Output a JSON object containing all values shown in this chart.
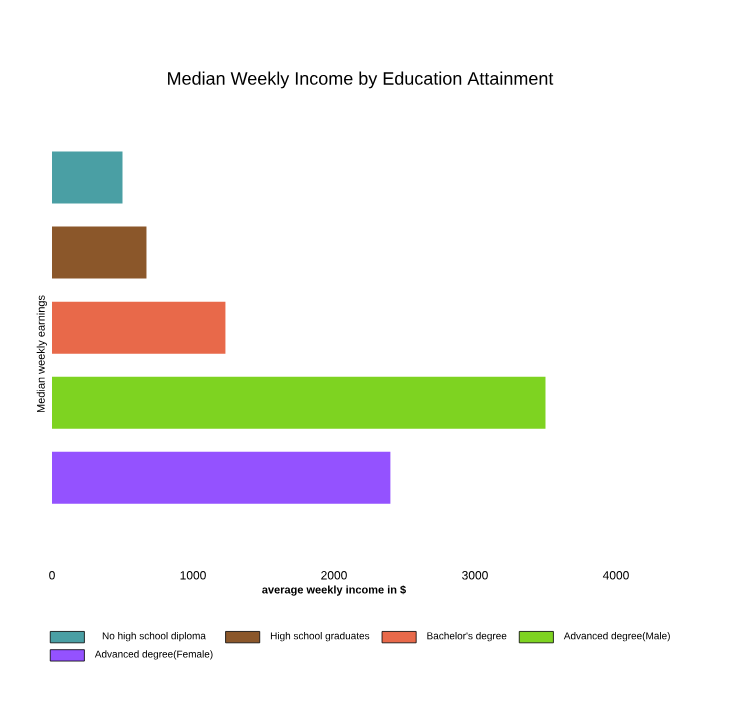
{
  "chart_data": {
    "type": "bar",
    "orientation": "horizontal",
    "stacked": true,
    "title": "Median Weekly Income by Education Attainment",
    "xlabel": "average weekly income in $",
    "ylabel": "Median weekly earnings",
    "categories": [
      null,
      null,
      null,
      null,
      null
    ],
    "series": [
      {
        "name": "No high school diploma",
        "color": "#4a9fa4",
        "values": [
          500,
          null,
          null,
          null,
          null
        ]
      },
      {
        "name": "High school graduates",
        "color": "#8b572a",
        "values": [
          null,
          670,
          null,
          null,
          null
        ]
      },
      {
        "name": "Bachelor's degree",
        "color": "#e8694a",
        "values": [
          null,
          null,
          1230,
          null,
          null
        ]
      },
      {
        "name": "Advanced degree(Male)",
        "color": "#7ed321",
        "values": [
          null,
          null,
          null,
          3500,
          null
        ]
      },
      {
        "name": "Advanced degree(Female)",
        "color": "#9452ff",
        "values": [
          null,
          null,
          null,
          null,
          2400
        ]
      }
    ],
    "xlim": [
      0,
      4000
    ],
    "xticks": [
      0,
      1000,
      2000,
      3000,
      4000
    ],
    "legend": "bottom"
  }
}
